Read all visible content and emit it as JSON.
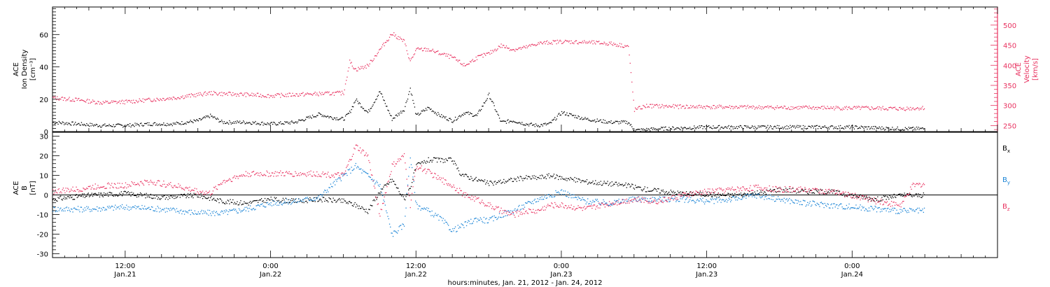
{
  "chart_data": [
    {
      "type": "scatter",
      "title": "",
      "xlabel": "hours:minutes, Jan. 21, 2012 - Jan. 24, 2012",
      "x_ticks": [
        {
          "time": "12:00",
          "date": "Jan.21",
          "hour": 12
        },
        {
          "time": "0:00",
          "date": "Jan.22",
          "hour": 24
        },
        {
          "time": "12:00",
          "date": "Jan.22",
          "hour": 36
        },
        {
          "time": "0:00",
          "date": "Jan.23",
          "hour": 48
        },
        {
          "time": "12:00",
          "date": "Jan.23",
          "hour": 60
        },
        {
          "time": "0:00",
          "date": "Jan.24",
          "hour": 72
        }
      ],
      "xlim_hours": [
        6,
        84
      ],
      "left_axis": {
        "label_lines": [
          "ACE",
          "Ion Density",
          "[cm⁻³]"
        ],
        "ylim": [
          0,
          77
        ],
        "ticks": [
          0,
          20,
          40,
          60
        ],
        "color": "#000000"
      },
      "right_axis": {
        "label_lines": [
          "ACE",
          "Velocity",
          "[km/s]"
        ],
        "ylim": [
          235,
          545
        ],
        "ticks": [
          250,
          300,
          350,
          400,
          450,
          500
        ],
        "color": "#e8315f"
      },
      "series": [
        {
          "axis": "left",
          "color": "#000000",
          "points": [
            [
              6,
              6
            ],
            [
              8,
              5
            ],
            [
              10,
              4
            ],
            [
              12,
              4
            ],
            [
              14,
              5
            ],
            [
              16,
              5
            ],
            [
              18,
              7
            ],
            [
              19,
              10
            ],
            [
              20,
              6
            ],
            [
              22,
              6
            ],
            [
              24,
              5
            ],
            [
              26,
              6
            ],
            [
              28,
              11
            ],
            [
              29,
              9
            ],
            [
              30,
              8
            ],
            [
              30.5,
              12
            ],
            [
              31,
              20
            ],
            [
              32,
              12
            ],
            [
              33,
              25
            ],
            [
              34,
              8
            ],
            [
              35,
              14
            ],
            [
              35.5,
              27
            ],
            [
              36,
              10
            ],
            [
              37,
              15
            ],
            [
              38,
              10
            ],
            [
              39,
              7
            ],
            [
              40,
              12
            ],
            [
              41,
              10
            ],
            [
              42,
              23
            ],
            [
              43,
              6
            ],
            [
              44,
              7
            ],
            [
              45,
              5
            ],
            [
              46,
              4
            ],
            [
              47,
              5
            ],
            [
              48,
              12
            ],
            [
              49,
              10
            ],
            [
              50,
              8
            ],
            [
              52,
              6
            ],
            [
              53.5,
              6
            ],
            [
              54,
              1
            ],
            [
              56,
              2
            ],
            [
              60,
              3
            ],
            [
              64,
              3
            ],
            [
              68,
              3
            ],
            [
              72,
              3
            ],
            [
              76,
              2
            ],
            [
              78,
              2
            ]
          ]
        },
        {
          "axis": "right",
          "color": "#e8315f",
          "points": [
            [
              6,
              320
            ],
            [
              8,
              315
            ],
            [
              10,
              308
            ],
            [
              12,
              310
            ],
            [
              14,
              315
            ],
            [
              16,
              320
            ],
            [
              18,
              328
            ],
            [
              19,
              332
            ],
            [
              20,
              330
            ],
            [
              22,
              328
            ],
            [
              24,
              325
            ],
            [
              26,
              328
            ],
            [
              28,
              330
            ],
            [
              30,
              332
            ],
            [
              30.5,
              410
            ],
            [
              31,
              390
            ],
            [
              32,
              400
            ],
            [
              33,
              440
            ],
            [
              34,
              480
            ],
            [
              35,
              460
            ],
            [
              35.5,
              410
            ],
            [
              36,
              440
            ],
            [
              37,
              440
            ],
            [
              38,
              430
            ],
            [
              39,
              420
            ],
            [
              40,
              400
            ],
            [
              41,
              420
            ],
            [
              42,
              430
            ],
            [
              43,
              450
            ],
            [
              44,
              440
            ],
            [
              45,
              445
            ],
            [
              46,
              455
            ],
            [
              47,
              458
            ],
            [
              48,
              460
            ],
            [
              50,
              458
            ],
            [
              52,
              455
            ],
            [
              53.5,
              448
            ],
            [
              54,
              290
            ],
            [
              55,
              300
            ],
            [
              58,
              298
            ],
            [
              62,
              297
            ],
            [
              66,
              296
            ],
            [
              70,
              295
            ],
            [
              74,
              294
            ],
            [
              76,
              293
            ],
            [
              78,
              295
            ]
          ]
        }
      ]
    },
    {
      "type": "scatter",
      "title": "",
      "xlabel": "hours:minutes, Jan. 21, 2012 - Jan. 24, 2012",
      "xlim_hours": [
        6,
        84
      ],
      "left_axis": {
        "label_lines": [
          "ACE",
          "B",
          "[nT]"
        ],
        "ylim": [
          -32,
          32
        ],
        "ticks": [
          -30,
          -20,
          -10,
          0,
          10,
          20,
          30
        ]
      },
      "zero_line": true,
      "series": [
        {
          "name": "Bₓ",
          "color": "#000000",
          "points": [
            [
              6,
              -2
            ],
            [
              9,
              0
            ],
            [
              12,
              1
            ],
            [
              15,
              -1
            ],
            [
              18,
              0
            ],
            [
              20,
              -3
            ],
            [
              22,
              -4
            ],
            [
              24,
              -2
            ],
            [
              26,
              -3
            ],
            [
              28,
              -2
            ],
            [
              30,
              -3
            ],
            [
              31,
              -5
            ],
            [
              32,
              -8
            ],
            [
              33,
              2
            ],
            [
              34,
              8
            ],
            [
              35,
              -2
            ],
            [
              35.5,
              4
            ],
            [
              36,
              15
            ],
            [
              37,
              18
            ],
            [
              38,
              18
            ],
            [
              39,
              18
            ],
            [
              39.5,
              12
            ],
            [
              40,
              10
            ],
            [
              41,
              8
            ],
            [
              42,
              6
            ],
            [
              43,
              7
            ],
            [
              44,
              8
            ],
            [
              45,
              9
            ],
            [
              46,
              9
            ],
            [
              47,
              10
            ],
            [
              48,
              9
            ],
            [
              49,
              8
            ],
            [
              50,
              7
            ],
            [
              52,
              6
            ],
            [
              53.5,
              5
            ],
            [
              55,
              3
            ],
            [
              58,
              1
            ],
            [
              62,
              0
            ],
            [
              64,
              1
            ],
            [
              66,
              3
            ],
            [
              68,
              2
            ],
            [
              70,
              2
            ],
            [
              72,
              0
            ],
            [
              74,
              -2
            ],
            [
              76,
              0
            ],
            [
              78,
              0
            ]
          ]
        },
        {
          "name": "Bᵧ",
          "color": "#1a84d6",
          "points": [
            [
              6,
              -7
            ],
            [
              9,
              -7
            ],
            [
              12,
              -6
            ],
            [
              15,
              -7
            ],
            [
              18,
              -9
            ],
            [
              20,
              -9
            ],
            [
              22,
              -7
            ],
            [
              24,
              -4
            ],
            [
              26,
              -3
            ],
            [
              28,
              -1
            ],
            [
              29,
              5
            ],
            [
              30,
              10
            ],
            [
              31,
              15
            ],
            [
              32,
              10
            ],
            [
              33,
              5
            ],
            [
              34,
              -20
            ],
            [
              35,
              -15
            ],
            [
              35.5,
              20
            ],
            [
              36,
              -5
            ],
            [
              37,
              -8
            ],
            [
              38,
              -12
            ],
            [
              39,
              -18
            ],
            [
              40,
              -15
            ],
            [
              41,
              -12
            ],
            [
              42,
              -13
            ],
            [
              43,
              -10
            ],
            [
              44,
              -8
            ],
            [
              45,
              -5
            ],
            [
              46,
              -2
            ],
            [
              47,
              0
            ],
            [
              48,
              2
            ],
            [
              49,
              -1
            ],
            [
              50,
              -3
            ],
            [
              52,
              -4
            ],
            [
              54,
              -2
            ],
            [
              56,
              -2
            ],
            [
              58,
              -2
            ],
            [
              60,
              -3
            ],
            [
              62,
              -2
            ],
            [
              64,
              0
            ],
            [
              66,
              -2
            ],
            [
              68,
              -4
            ],
            [
              70,
              -5
            ],
            [
              72,
              -6
            ],
            [
              74,
              -7
            ],
            [
              76,
              -8
            ],
            [
              78,
              -8
            ]
          ]
        },
        {
          "name": "B_z",
          "color": "#e8315f",
          "points": [
            [
              6,
              2
            ],
            [
              8,
              3
            ],
            [
              10,
              5
            ],
            [
              12,
              5
            ],
            [
              14,
              7
            ],
            [
              16,
              5
            ],
            [
              18,
              2
            ],
            [
              19,
              1
            ],
            [
              20,
              7
            ],
            [
              22,
              11
            ],
            [
              24,
              11
            ],
            [
              26,
              11
            ],
            [
              28,
              11
            ],
            [
              30,
              10
            ],
            [
              31,
              25
            ],
            [
              32,
              20
            ],
            [
              33,
              -10
            ],
            [
              34,
              15
            ],
            [
              35,
              20
            ],
            [
              35.5,
              -5
            ],
            [
              36,
              15
            ],
            [
              37,
              12
            ],
            [
              38,
              8
            ],
            [
              39,
              5
            ],
            [
              40,
              0
            ],
            [
              41,
              -2
            ],
            [
              42,
              -5
            ],
            [
              43,
              -8
            ],
            [
              44,
              -10
            ],
            [
              45,
              -8
            ],
            [
              46,
              -8
            ],
            [
              47,
              -5
            ],
            [
              48,
              -5
            ],
            [
              49,
              -6
            ],
            [
              50,
              -7
            ],
            [
              52,
              -4
            ],
            [
              54,
              -2
            ],
            [
              56,
              -3
            ],
            [
              58,
              0
            ],
            [
              60,
              2
            ],
            [
              62,
              3
            ],
            [
              64,
              4
            ],
            [
              66,
              3
            ],
            [
              68,
              3
            ],
            [
              70,
              2
            ],
            [
              72,
              0
            ],
            [
              74,
              -3
            ],
            [
              76,
              -5
            ],
            [
              77,
              5
            ],
            [
              78,
              6
            ]
          ]
        }
      ],
      "legend": {
        "placement": "right",
        "entries": [
          {
            "main": "B",
            "sub": "x",
            "color": "#000000"
          },
          {
            "main": "B",
            "sub": "y",
            "color": "#1a84d6"
          },
          {
            "main": "B",
            "sub": "z",
            "color": "#e8315f"
          }
        ]
      }
    }
  ]
}
